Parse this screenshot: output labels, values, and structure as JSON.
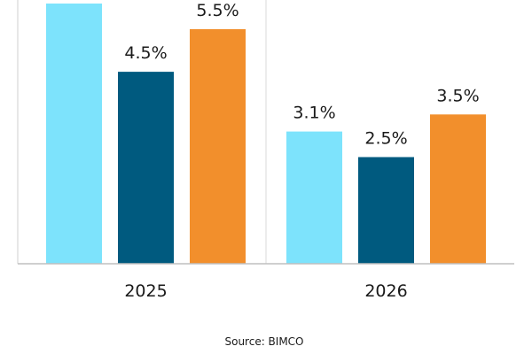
{
  "chart_data": {
    "type": "bar",
    "title": "",
    "xlabel": "",
    "ylabel": "",
    "categories": [
      "2025",
      "2026"
    ],
    "ylim": [
      0,
      6.1
    ],
    "grid": false,
    "series": [
      {
        "values": [
          6.1,
          3.1
        ],
        "labels": [
          "",
          "3.1%"
        ],
        "color": "#7de3fc"
      },
      {
        "values": [
          4.5,
          2.5
        ],
        "labels": [
          "4.5%",
          "2.5%"
        ],
        "color": "#005a7f"
      },
      {
        "values": [
          5.5,
          3.5
        ],
        "labels": [
          "5.5%",
          "3.5%"
        ],
        "color": "#f28f2c"
      }
    ],
    "source": "Source: BIMCO"
  }
}
